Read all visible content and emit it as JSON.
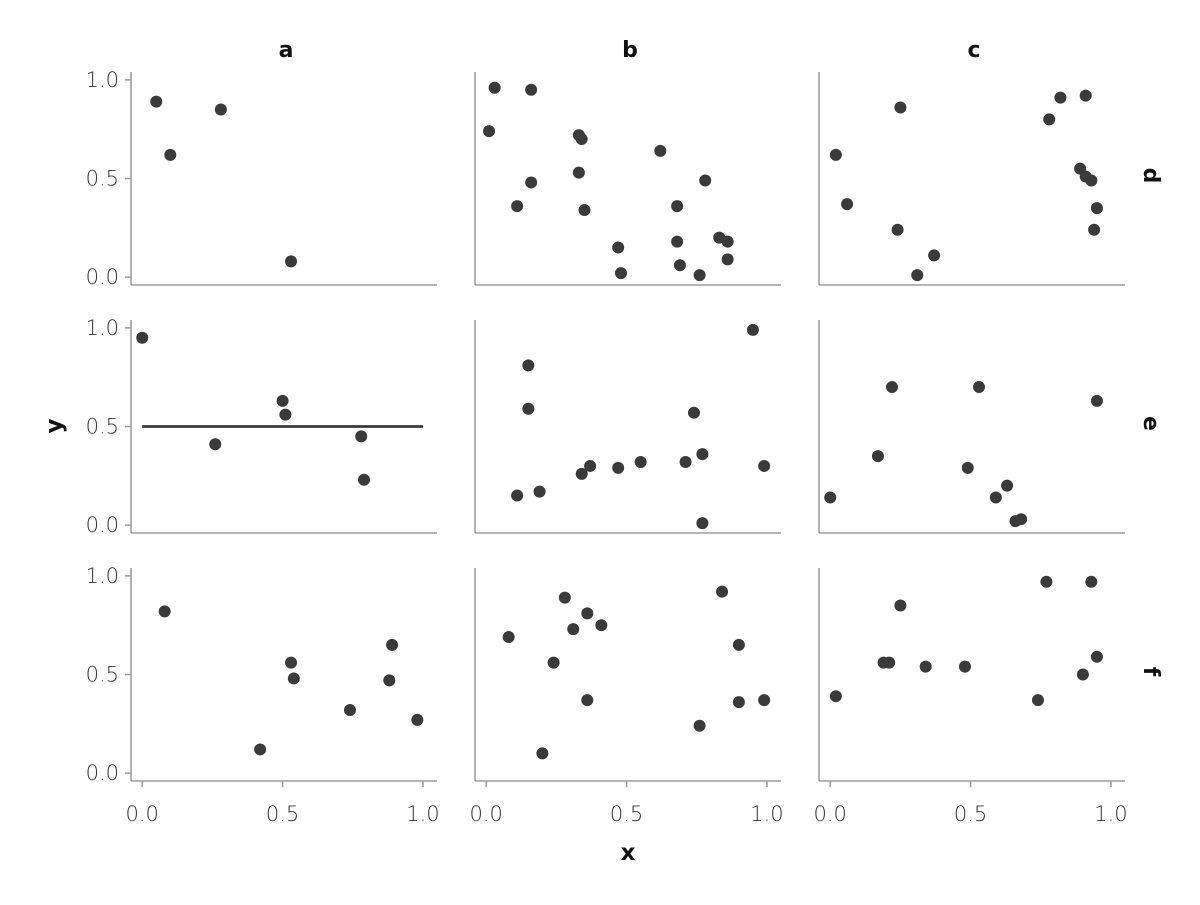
{
  "chart_data": {
    "type": "scatter",
    "xlabel": "x",
    "ylabel": "y",
    "xlim": [
      -0.04,
      1.05
    ],
    "ylim": [
      -0.04,
      1.04
    ],
    "ticks": [
      0.0,
      0.5,
      1.0
    ],
    "tick_labels": [
      "0.0",
      "0.5",
      "1.0"
    ],
    "col_facets": [
      "a",
      "b",
      "c"
    ],
    "row_facets": [
      "d",
      "e",
      "f"
    ],
    "grid": false,
    "point_color": "#3a3a3a",
    "axis_color": "#9e9e9e",
    "panels": [
      {
        "col": "a",
        "row": "d",
        "x": [
          0.05,
          0.1,
          0.28,
          0.53
        ],
        "y": [
          0.89,
          0.62,
          0.85,
          0.08
        ]
      },
      {
        "col": "b",
        "row": "d",
        "x": [
          0.01,
          0.03,
          0.16,
          0.16,
          0.11,
          0.33,
          0.34,
          0.35,
          0.33,
          0.62,
          0.78,
          0.68,
          0.47,
          0.48,
          0.68,
          0.69,
          0.76,
          0.83,
          0.86,
          0.86
        ],
        "y": [
          0.74,
          0.96,
          0.95,
          0.48,
          0.36,
          0.72,
          0.7,
          0.34,
          0.53,
          0.64,
          0.49,
          0.36,
          0.15,
          0.02,
          0.18,
          0.06,
          0.01,
          0.2,
          0.18,
          0.09
        ]
      },
      {
        "col": "c",
        "row": "d",
        "x": [
          0.02,
          0.06,
          0.25,
          0.24,
          0.31,
          0.37,
          0.78,
          0.82,
          0.91,
          0.89,
          0.91,
          0.93,
          0.95,
          0.94
        ],
        "y": [
          0.62,
          0.37,
          0.86,
          0.24,
          0.01,
          0.11,
          0.8,
          0.91,
          0.92,
          0.55,
          0.51,
          0.49,
          0.35,
          0.24
        ]
      },
      {
        "col": "a",
        "row": "e",
        "x": [
          0.0,
          0.26,
          0.5,
          0.51,
          0.78,
          0.79
        ],
        "y": [
          0.95,
          0.41,
          0.63,
          0.56,
          0.45,
          0.23
        ],
        "hline": 0.5,
        "hline_x": [
          0.0,
          1.0
        ]
      },
      {
        "col": "b",
        "row": "e",
        "x": [
          0.15,
          0.15,
          0.11,
          0.19,
          0.34,
          0.37,
          0.47,
          0.55,
          0.71,
          0.74,
          0.77,
          0.77,
          0.95,
          0.99
        ],
        "y": [
          0.81,
          0.59,
          0.15,
          0.17,
          0.26,
          0.3,
          0.29,
          0.32,
          0.32,
          0.57,
          0.36,
          0.01,
          0.99,
          0.3
        ]
      },
      {
        "col": "c",
        "row": "e",
        "x": [
          0.0,
          0.17,
          0.22,
          0.49,
          0.53,
          0.59,
          0.63,
          0.66,
          0.68,
          0.95
        ],
        "y": [
          0.14,
          0.35,
          0.7,
          0.29,
          0.7,
          0.14,
          0.2,
          0.02,
          0.03,
          0.63
        ]
      },
      {
        "col": "a",
        "row": "f",
        "x": [
          0.08,
          0.42,
          0.53,
          0.54,
          0.74,
          0.88,
          0.89,
          0.98
        ],
        "y": [
          0.82,
          0.12,
          0.56,
          0.48,
          0.32,
          0.47,
          0.65,
          0.27
        ]
      },
      {
        "col": "b",
        "row": "f",
        "x": [
          0.08,
          0.2,
          0.24,
          0.28,
          0.31,
          0.36,
          0.36,
          0.41,
          0.76,
          0.84,
          0.9,
          0.9,
          0.99
        ],
        "y": [
          0.69,
          0.1,
          0.56,
          0.89,
          0.73,
          0.81,
          0.37,
          0.75,
          0.24,
          0.92,
          0.65,
          0.36,
          0.37
        ]
      },
      {
        "col": "c",
        "row": "f",
        "x": [
          0.02,
          0.19,
          0.21,
          0.25,
          0.34,
          0.48,
          0.74,
          0.77,
          0.9,
          0.93,
          0.95
        ],
        "y": [
          0.39,
          0.56,
          0.56,
          0.85,
          0.54,
          0.54,
          0.37,
          0.97,
          0.5,
          0.97,
          0.59
        ]
      }
    ]
  }
}
